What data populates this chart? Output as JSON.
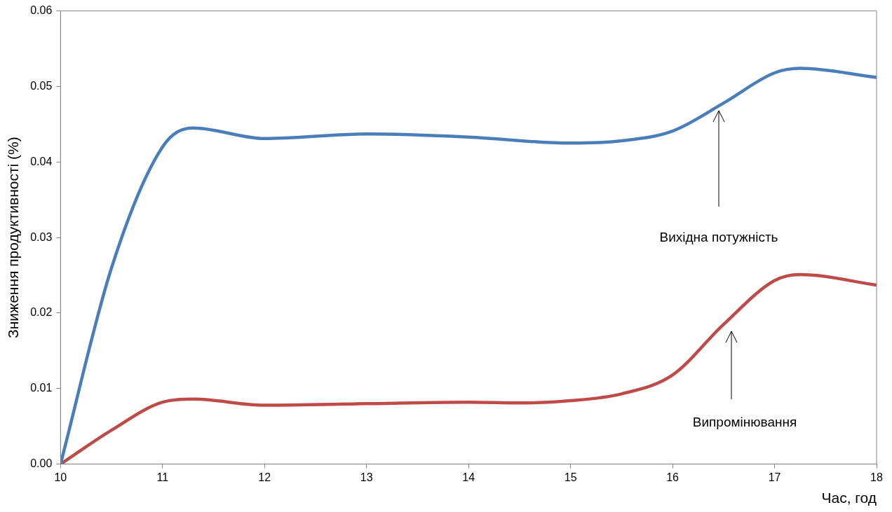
{
  "chart_data": {
    "type": "line",
    "xlabel": "Час, год",
    "ylabel": "Зниження продуктивності (%)",
    "xlim": [
      10,
      18
    ],
    "xticks": [
      10,
      11,
      12,
      13,
      14,
      15,
      16,
      17,
      18
    ],
    "ylim": [
      0,
      0.06
    ],
    "yticks": [
      {
        "value": 0,
        "label": "0.00"
      },
      0.01,
      0.02,
      0.03,
      0.04,
      0.05,
      0.06
    ],
    "grid": false,
    "legend": false,
    "marker": "none",
    "line_style": "solid",
    "series": [
      {
        "color": "#4a7ebb",
        "x": [
          10,
          10.5,
          11,
          11.3,
          12,
          13,
          14,
          15,
          15.5,
          16,
          16.5,
          17,
          17.25,
          18
        ],
        "values": [
          0,
          0.026,
          0.042,
          0.0445,
          0.0431,
          0.0437,
          0.0433,
          0.0425,
          0.0428,
          0.0441,
          0.0478,
          0.0518,
          0.0524,
          0.0512
        ]
      },
      {
        "color": "#be4b48",
        "x": [
          10,
          10.5,
          11,
          11.3,
          12,
          13,
          14,
          14.5,
          15,
          15.5,
          16,
          16.5,
          17,
          17.25,
          18
        ],
        "values": [
          0,
          0.0045,
          0.0082,
          0.0086,
          0.0078,
          0.008,
          0.0082,
          0.0081,
          0.0084,
          0.0093,
          0.0118,
          0.0185,
          0.0243,
          0.0251,
          0.0237
        ]
      }
    ],
    "annotations": [
      "Вихідна потужність",
      "Випромінювання"
    ]
  }
}
